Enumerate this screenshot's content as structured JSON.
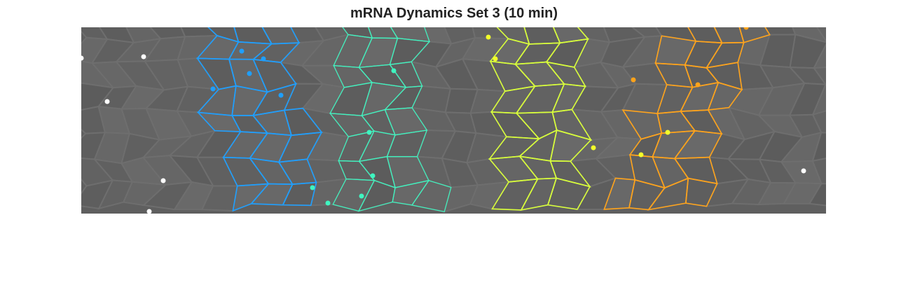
{
  "figure": {
    "title": "mRNA Dynamics Set 3 (10 min)"
  },
  "image": {
    "description_colors": {
      "background": "#5f5f5f",
      "cell_edge": "#6e6e6e",
      "band_colors": [
        "#1e9fff",
        "#3ff5c0",
        "#d9ff3a",
        "#ffa31a"
      ]
    },
    "bands": [
      {
        "name": "blue-band",
        "color": "#1e9fff"
      },
      {
        "name": "cyan-band",
        "color": "#3ff5c0"
      },
      {
        "name": "yellow-band",
        "color": "#d9ff3a"
      },
      {
        "name": "orange-band",
        "color": "#ffa31a"
      }
    ],
    "spot_colors": [
      "#ffffff",
      "#1e9fff",
      "#3ff5c0",
      "#f2ff2a",
      "#ffa31a"
    ]
  }
}
